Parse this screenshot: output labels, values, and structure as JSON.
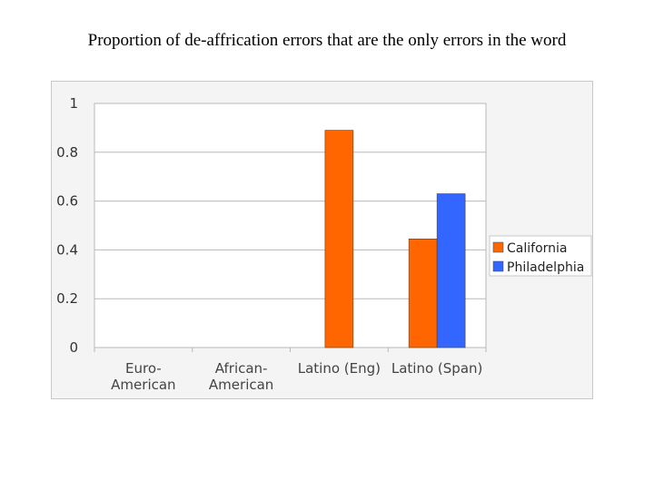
{
  "slide": {
    "title": "Proportion of de-affrication errors that are the only errors in the word"
  },
  "chart_data": {
    "type": "bar",
    "categories": [
      [
        "Euro-",
        "American"
      ],
      [
        "African-",
        "American"
      ],
      [
        "Latino (Eng)"
      ],
      [
        "Latino (Span)"
      ]
    ],
    "series": [
      {
        "name": "California",
        "color": "#ff6600",
        "values": [
          0,
          0,
          0.89,
          0.445
        ]
      },
      {
        "name": "Philadelphia",
        "color": "#3366ff",
        "values": [
          null,
          null,
          null,
          0.63
        ]
      }
    ],
    "ylim": [
      0,
      1
    ],
    "yticks": [
      "0",
      "0.2",
      "0.4",
      "0.6",
      "0.8",
      "1"
    ],
    "grid": true,
    "legend_position": "right"
  }
}
